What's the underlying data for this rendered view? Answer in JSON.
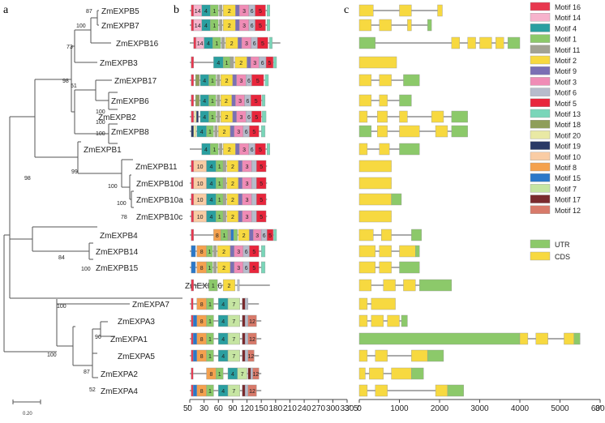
{
  "panel_labels": [
    "a",
    "b",
    "c"
  ],
  "scale_bar_label": "0.20",
  "genes": [
    "ZmEXPB5",
    "ZmEXPB7",
    "ZmEXPB16",
    "ZmEXPB3",
    "ZmEXPB17",
    "ZmEXPB6",
    "ZmEXPB2",
    "ZmEXPB8",
    "ZmEXPB1",
    "ZmEXPB11",
    "ZmEXPB10d",
    "ZmEXPB10a",
    "ZmEXPB10c",
    "ZmEXPB4",
    "ZmEXPB14",
    "ZmEXPB15",
    "ZmEXPA6",
    "ZmEXPA7",
    "ZmEXPA3",
    "ZmEXPA1",
    "ZmEXPA5",
    "ZmEXPA2",
    "ZmEXPA4"
  ],
  "bootstrap": [
    "87",
    "100",
    "73",
    "98",
    "51",
    "100",
    "100",
    "100",
    "99",
    "100",
    "100",
    "78",
    "98",
    "84",
    "100",
    "100",
    "96",
    "100",
    "87",
    "52"
  ],
  "axis_b": {
    "left_end": "5'",
    "right_end": "3'",
    "ticks": [
      "0",
      "30",
      "60",
      "90",
      "120",
      "150",
      "180",
      "210",
      "240",
      "270",
      "300",
      "330"
    ]
  },
  "axis_c": {
    "left_end": "5'",
    "right_end": "3'",
    "ticks": [
      "0",
      "1000",
      "2000",
      "3000",
      "4000",
      "5000",
      "6000"
    ]
  },
  "motif_legend": [
    {
      "name": "Motif 16",
      "color": "#e8384f"
    },
    {
      "name": "Motif 14",
      "color": "#f7b3cc"
    },
    {
      "name": "Motif 4",
      "color": "#2a9fa0"
    },
    {
      "name": "Motif 1",
      "color": "#8cc96a"
    },
    {
      "name": "Motif 11",
      "color": "#a2a293"
    },
    {
      "name": "Motif 2",
      "color": "#f7d940"
    },
    {
      "name": "Motif 9",
      "color": "#7b6fb4"
    },
    {
      "name": "Motif 3",
      "color": "#f08cb6"
    },
    {
      "name": "Motif 6",
      "color": "#b7bccc"
    },
    {
      "name": "Motif 5",
      "color": "#e8263c"
    },
    {
      "name": "Motif 13",
      "color": "#79d6b9"
    },
    {
      "name": "Motif 18",
      "color": "#8f9e5a"
    },
    {
      "name": "Motif 20",
      "color": "#e9e9a4"
    },
    {
      "name": "Motif 19",
      "color": "#2b3a66"
    },
    {
      "name": "Motif 10",
      "color": "#f9cca4"
    },
    {
      "name": "Motif 8",
      "color": "#f4a14e"
    },
    {
      "name": "Motif 15",
      "color": "#2b78c9"
    },
    {
      "name": "Motif 7",
      "color": "#c6e5a2"
    },
    {
      "name": "Motif 17",
      "color": "#7a2a2e"
    },
    {
      "name": "Motif 12",
      "color": "#d87a6a"
    }
  ],
  "structure_legend": [
    {
      "name": "UTR",
      "color": "#8cc96a"
    },
    {
      "name": "CDS",
      "color": "#f7d940"
    }
  ]
}
